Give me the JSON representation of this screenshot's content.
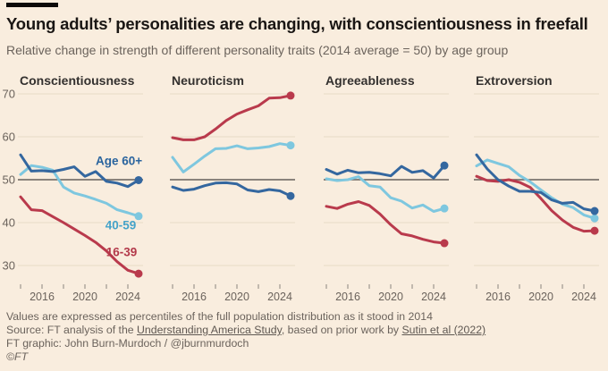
{
  "header": {
    "title": "Young adults’ personalities are changing, with conscientiousness in freefall",
    "subtitle": "Relative change in strength of different personality traits (2014 average = 50) by age group"
  },
  "colors": {
    "age_60_plus": "#34679f",
    "age_40_59": "#7ec7df",
    "age_16_39": "#b93a4c",
    "label_age_60_plus": "#2a649e",
    "label_age_40_59": "#45a3c9",
    "label_age_16_39": "#b3394a",
    "reference_line": "#66605b",
    "gridline": "#e8dac7",
    "background": "#f9edde",
    "tick": "#8c857e"
  },
  "chart_data": {
    "type": "line",
    "x": [
      2014,
      2015,
      2016,
      2017,
      2018,
      2019,
      2020,
      2021,
      2022,
      2023,
      2024,
      2025
    ],
    "xticks": [
      2014,
      2016,
      2018,
      2020,
      2022,
      2024
    ],
    "xtick_labels": [
      "2016",
      "2020",
      "2024"
    ],
    "ylim": [
      27,
      71
    ],
    "yticks": [
      30,
      40,
      50,
      60,
      70
    ],
    "reference_line": 50,
    "legend": [
      {
        "name": "Age 60+",
        "color": "#2a649e"
      },
      {
        "name": "40-59",
        "color": "#45a3c9"
      },
      {
        "name": "16-39",
        "color": "#b3394a"
      }
    ],
    "panels": [
      {
        "title": "Conscientiousness",
        "series": [
          {
            "name": "Age 60+",
            "color": "#34679f",
            "values": [
              55.8,
              52.0,
              52.1,
              51.9,
              52.4,
              53.0,
              50.8,
              51.9,
              49.6,
              49.2,
              48.4,
              49.9
            ]
          },
          {
            "name": "40-59",
            "color": "#7ec7df",
            "values": [
              51.2,
              53.3,
              52.9,
              52.2,
              48.3,
              46.9,
              46.2,
              45.4,
              44.5,
              43.0,
              42.3,
              41.5
            ]
          },
          {
            "name": "16-39",
            "color": "#b93a4c",
            "values": [
              46.0,
              43.0,
              42.8,
              41.4,
              40.0,
              38.5,
              37.0,
              35.4,
              33.4,
              30.9,
              28.9,
              28.1
            ]
          }
        ]
      },
      {
        "title": "Neuroticism",
        "series": [
          {
            "name": "Age 60+",
            "color": "#34679f",
            "values": [
              48.3,
              47.5,
              47.8,
              48.6,
              49.2,
              49.3,
              49.0,
              47.6,
              47.2,
              47.7,
              47.4,
              46.2
            ]
          },
          {
            "name": "40-59",
            "color": "#7ec7df",
            "values": [
              55.2,
              51.8,
              53.6,
              55.5,
              57.2,
              57.3,
              57.9,
              57.2,
              57.4,
              57.7,
              58.4,
              58.0
            ]
          },
          {
            "name": "16-39",
            "color": "#b93a4c",
            "values": [
              59.8,
              59.3,
              59.3,
              60.0,
              61.8,
              63.8,
              65.3,
              66.3,
              67.2,
              69.0,
              69.1,
              69.6
            ]
          }
        ]
      },
      {
        "title": "Agreeableness",
        "series": [
          {
            "name": "Age 60+",
            "color": "#34679f",
            "values": [
              52.4,
              51.3,
              52.2,
              51.6,
              51.7,
              51.4,
              50.9,
              53.1,
              51.7,
              52.1,
              50.4,
              53.3
            ]
          },
          {
            "name": "40-59",
            "color": "#7ec7df",
            "values": [
              50.2,
              49.8,
              50.0,
              50.7,
              48.6,
              48.3,
              45.8,
              45.0,
              43.4,
              44.1,
              42.6,
              43.3
            ]
          },
          {
            "name": "16-39",
            "color": "#b93a4c",
            "values": [
              43.8,
              43.3,
              44.3,
              44.9,
              44.0,
              42.0,
              39.5,
              37.4,
              36.9,
              36.1,
              35.5,
              35.2
            ]
          }
        ]
      },
      {
        "title": "Extroversion",
        "series": [
          {
            "name": "Age 60+",
            "color": "#34679f",
            "values": [
              55.8,
              52.5,
              50.0,
              48.5,
              47.3,
              47.3,
              47.0,
              45.3,
              44.5,
              44.7,
              43.2,
              42.7
            ]
          },
          {
            "name": "40-59",
            "color": "#7ec7df",
            "values": [
              53.2,
              54.6,
              53.8,
              53.0,
              51.0,
              49.5,
              47.6,
              45.8,
              44.3,
              43.5,
              41.8,
              41.0
            ]
          },
          {
            "name": "16-39",
            "color": "#b93a4c",
            "values": [
              50.8,
              49.8,
              49.6,
              50.0,
              49.4,
              48.2,
              45.6,
              42.8,
              40.6,
              38.9,
              38.0,
              38.1
            ]
          }
        ]
      }
    ]
  },
  "footer": {
    "note": "Values are expressed as percentiles of the full population distribution as it stood in 2014",
    "source_prefix": "Source: FT analysis of the ",
    "source_link1": "Understanding America Study",
    "source_middle": ", based on prior work by ",
    "source_link2": "Sutin et al (2022)",
    "credit": "FT graphic: John Burn-Murdoch / @jburnmurdoch",
    "copyright": "©FT"
  }
}
